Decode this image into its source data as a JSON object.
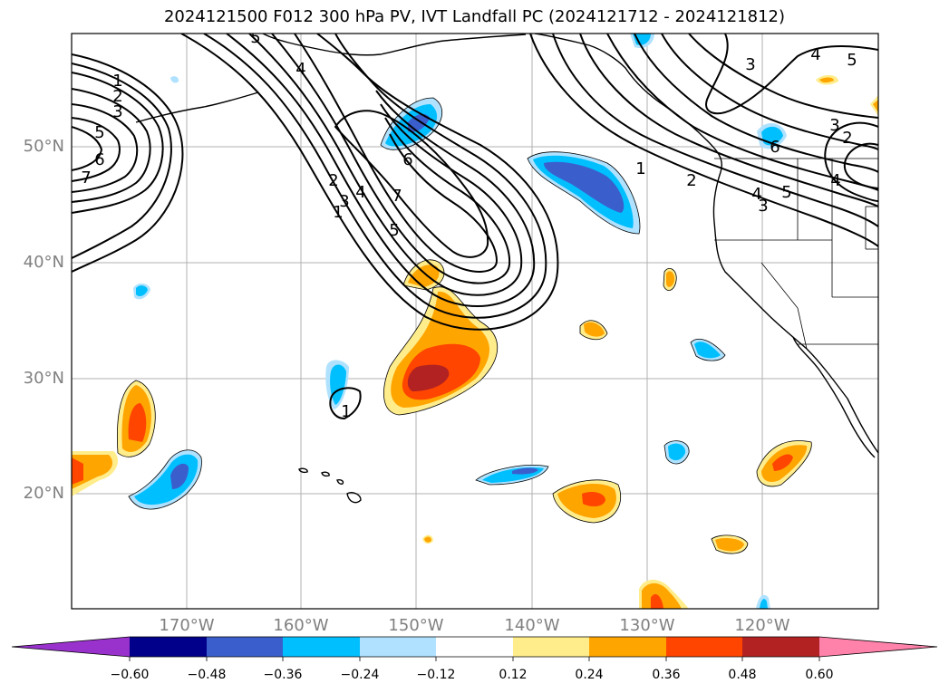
{
  "title": "2024121500 F012 300 hPa PV, IVT Landfall PC (2024121712 - 2024121812)",
  "lat_labels": [
    "50°N",
    "40°N",
    "30°N",
    "20°N"
  ],
  "lon_labels": [
    "170°W",
    "160°W",
    "150°W",
    "140°W",
    "130°W",
    "120°W"
  ],
  "contour_labels": [
    "1",
    "2",
    "3",
    "5",
    "6",
    "7",
    "5",
    "4",
    "3",
    "7",
    "6",
    "5",
    "4",
    "2",
    "1",
    "1",
    "2",
    "3",
    "4",
    "5",
    "6",
    "3",
    "3",
    "4",
    "2",
    "4",
    "5",
    "1"
  ],
  "colorbar": {
    "ticks": [
      "−0.60",
      "−0.48",
      "−0.36",
      "−0.24",
      "−0.12",
      "0.12",
      "0.24",
      "0.36",
      "0.48",
      "0.60"
    ],
    "colors": [
      "#9932cc",
      "#00008b",
      "#3a5fcd",
      "#00bfff",
      "#b0e2ff",
      "#ffffff",
      "#ffec8b",
      "#ffa500",
      "#ff4500",
      "#b22222",
      "#ff82ab"
    ]
  },
  "fill_colors": {
    "neg1": "#b0e2ff",
    "neg2": "#00bfff",
    "neg3": "#3a5fcd",
    "pos1": "#ffec8b",
    "pos2": "#ffa500",
    "pos3": "#ff4500",
    "pos4": "#b22222"
  }
}
